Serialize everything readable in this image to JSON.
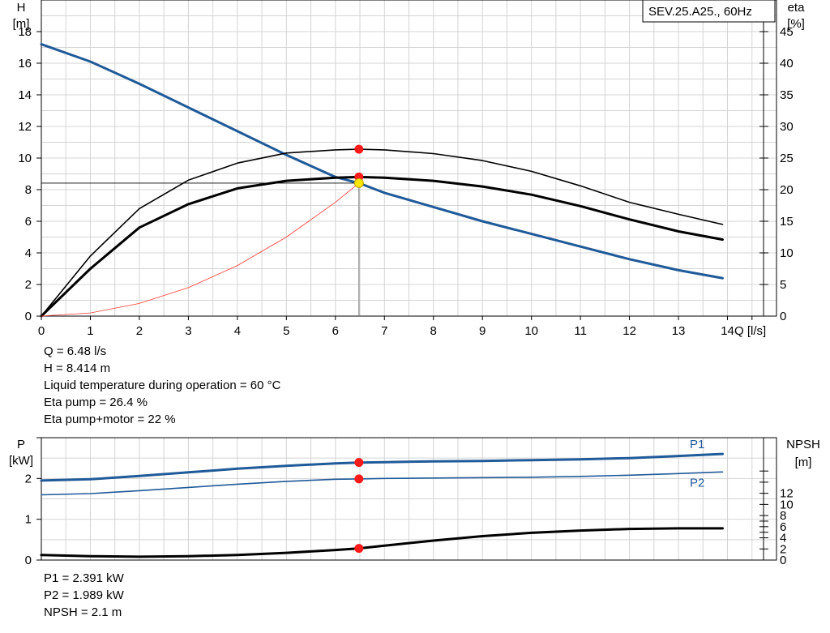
{
  "legend_box": "SEV.25.A25., 60Hz",
  "top_info": {
    "q": "Q = 6.48 l/s",
    "h": "H = 8.414 m",
    "temp": "Liquid temperature during operation = 60 °C",
    "eta_pump": "Eta pump = 26.4 %",
    "eta_total": "Eta pump+motor = 22 %"
  },
  "bottom_info": {
    "p1": "P1 = 2.391 kW",
    "p2": "P2 = 1.989 kW",
    "npsh": "NPSH = 2.1 m"
  },
  "chart_data": [
    {
      "type": "line",
      "title": "SEV.25.A25., 60Hz",
      "xlabel": "Q [l/s]",
      "ylabel_left": [
        "H",
        "[m]"
      ],
      "ylabel_right": [
        "eta",
        "[%]"
      ],
      "xlim": [
        0,
        15
      ],
      "ylim_left": [
        0,
        20
      ],
      "ylim_right": [
        0,
        50
      ],
      "xticks": [
        0,
        1,
        2,
        3,
        4,
        5,
        6,
        7,
        8,
        9,
        10,
        11,
        12,
        13,
        14
      ],
      "yticks_left": [
        0,
        2,
        4,
        6,
        8,
        10,
        12,
        14,
        16,
        18
      ],
      "yticks_right": [
        0,
        5,
        10,
        15,
        20,
        25,
        30,
        35,
        40,
        45
      ],
      "grid": true,
      "series": [
        {
          "axis": "left",
          "color": "#1f5a99",
          "width": 3,
          "x": [
            0,
            1,
            2,
            3,
            4,
            5,
            6,
            6.48,
            7,
            8,
            9,
            10,
            11,
            12,
            13,
            13.9
          ],
          "y": [
            17.2,
            16.1,
            14.7,
            13.2,
            11.7,
            10.2,
            8.8,
            8.414,
            7.8,
            6.9,
            6.0,
            5.2,
            4.4,
            3.6,
            2.9,
            2.4
          ]
        },
        {
          "axis": "right",
          "color": "#000000",
          "width": 1.6,
          "x": [
            0,
            1,
            2,
            3,
            4,
            5,
            6,
            6.48,
            7,
            8,
            9,
            10,
            11,
            12,
            13,
            13.9
          ],
          "y": [
            0,
            9.5,
            17.0,
            21.5,
            24.2,
            25.8,
            26.3,
            26.4,
            26.3,
            25.7,
            24.6,
            22.9,
            20.6,
            18.0,
            16.1,
            14.5
          ]
        },
        {
          "axis": "right",
          "color": "#000000",
          "width": 3,
          "x": [
            0,
            1,
            2,
            3,
            4,
            5,
            6,
            6.48,
            7,
            8,
            9,
            10,
            11,
            12,
            13,
            13.9
          ],
          "y": [
            0,
            7.5,
            14.0,
            17.7,
            20.2,
            21.4,
            21.9,
            22.0,
            21.9,
            21.4,
            20.5,
            19.2,
            17.4,
            15.3,
            13.4,
            12.1
          ]
        },
        {
          "axis": "left",
          "color": "#ff3b30",
          "width": 0.8,
          "x": [
            0,
            1,
            2,
            3,
            4,
            5,
            6,
            6.48
          ],
          "y": [
            0,
            0.2,
            0.8,
            1.8,
            3.2,
            5.0,
            7.2,
            8.414
          ]
        }
      ],
      "operating_point": {
        "x": 6.48,
        "h": 8.414
      },
      "markers": [
        {
          "x": 6.48,
          "y": 26.4,
          "axis": "right"
        },
        {
          "x": 6.48,
          "y": 22.0,
          "axis": "right"
        },
        {
          "x": 6.48,
          "y": 8.414,
          "axis": "left",
          "style": "operating"
        }
      ]
    },
    {
      "type": "line",
      "ylabel_left": [
        "P",
        "[kW]"
      ],
      "ylabel_right": [
        "NPSH",
        "[m]"
      ],
      "xlim": [
        0,
        15
      ],
      "ylim_left": [
        0,
        3
      ],
      "ylim_right": [
        0,
        22
      ],
      "yticks_left": [
        0,
        1,
        2
      ],
      "yticks_left_unlabeled": [
        3
      ],
      "yticks_right": [
        0,
        2,
        4,
        6,
        8,
        10,
        12
      ],
      "yticks_right_unlabeled": [
        5,
        7,
        14,
        16
      ],
      "grid": true,
      "series": [
        {
          "name": "P1",
          "axis": "left",
          "color": "#1f5a99",
          "width": 3,
          "x": [
            0,
            1,
            2,
            3,
            4,
            5,
            6,
            6.48,
            7,
            8,
            9,
            10,
            11,
            12,
            13,
            13.9
          ],
          "y": [
            1.95,
            1.98,
            2.06,
            2.15,
            2.24,
            2.31,
            2.37,
            2.391,
            2.4,
            2.42,
            2.43,
            2.45,
            2.47,
            2.5,
            2.55,
            2.6
          ]
        },
        {
          "name": "P2",
          "axis": "left",
          "color": "#1f5a99",
          "width": 1.6,
          "x": [
            0,
            1,
            2,
            3,
            4,
            5,
            6,
            6.48,
            7,
            8,
            9,
            10,
            11,
            12,
            13,
            13.9
          ],
          "y": [
            1.6,
            1.63,
            1.7,
            1.78,
            1.86,
            1.93,
            1.98,
            1.989,
            2.0,
            2.01,
            2.02,
            2.03,
            2.05,
            2.08,
            2.12,
            2.16
          ]
        },
        {
          "axis": "right",
          "color": "#000000",
          "width": 3,
          "x": [
            0,
            1,
            2,
            3,
            4,
            5,
            6,
            6.48,
            7,
            8,
            9,
            10,
            11,
            12,
            13,
            13.9
          ],
          "y": [
            0.9,
            0.7,
            0.6,
            0.7,
            0.9,
            1.3,
            1.8,
            2.1,
            2.6,
            3.5,
            4.3,
            4.9,
            5.3,
            5.6,
            5.7,
            5.7
          ]
        }
      ],
      "markers": [
        {
          "x": 6.48,
          "y": 2.391,
          "axis": "left"
        },
        {
          "x": 6.48,
          "y": 1.989,
          "axis": "left"
        },
        {
          "x": 6.48,
          "y": 2.1,
          "axis": "right"
        }
      ]
    }
  ]
}
